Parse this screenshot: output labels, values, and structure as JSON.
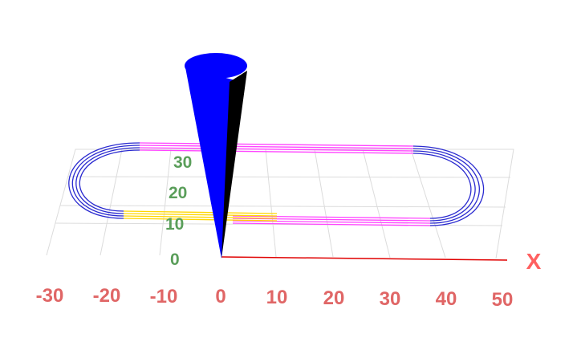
{
  "axes": {
    "x_name": "X",
    "x_ticks": [
      "-30",
      "-20",
      "-10",
      "0",
      "10",
      "20",
      "30",
      "40",
      "50"
    ],
    "y_ticks": [
      "0",
      "10",
      "20",
      "30"
    ]
  },
  "colors": {
    "x_tick": "#e06666",
    "y_tick": "#5a9e5a",
    "x_axis_line": "#e00000",
    "grid": "#dcdcdc",
    "cone": "#0000ff",
    "cone_shadow": "#000000",
    "track_curve": "#2a2ad0",
    "track_straight_top": "#ff44ff",
    "track_straight_bottom_left": "#ffd700",
    "track_straight_bottom_right": "#ff44ff"
  },
  "objects": {
    "track": "oval-track",
    "cone": "blue-cone"
  }
}
